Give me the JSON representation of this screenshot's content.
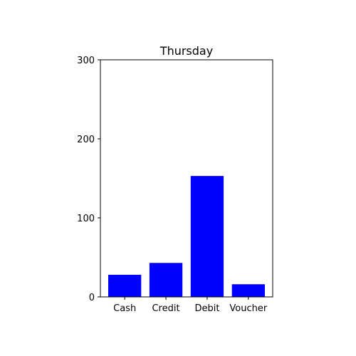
{
  "chart_data": {
    "type": "bar",
    "title": "Thursday",
    "categories": [
      "Cash",
      "Credit",
      "Debit",
      "Voucher"
    ],
    "values": [
      28,
      43,
      153,
      16
    ],
    "xlabel": "",
    "ylabel": "",
    "ylim": [
      0,
      300
    ],
    "yticks": [
      0,
      100,
      200,
      300
    ],
    "grid": false,
    "bar_color": "#0000ff"
  }
}
